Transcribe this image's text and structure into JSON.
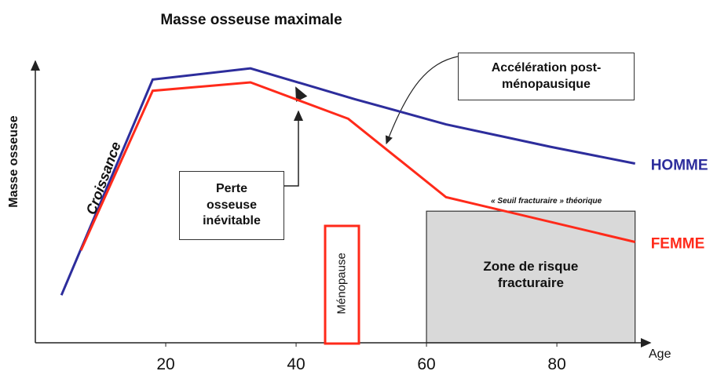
{
  "chart_data": {
    "type": "line",
    "title": "Masse osseuse maximale",
    "xlabel": "Age",
    "ylabel": "Masse osseuse",
    "xlim": [
      0,
      93
    ],
    "ylim": [
      0,
      100
    ],
    "xticks": [
      20,
      40,
      60,
      80
    ],
    "series": [
      {
        "name": "HOMME",
        "color": "#2d2d9c",
        "x": [
          4,
          18,
          33,
          49,
          63,
          79,
          92
        ],
        "values": [
          17,
          94,
          98,
          87,
          78,
          70,
          64
        ]
      },
      {
        "name": "FEMME",
        "color": "#ff2a1a",
        "x": [
          7,
          18,
          33,
          48,
          63,
          92
        ],
        "values": [
          33,
          90,
          93,
          80,
          52,
          36
        ]
      }
    ],
    "zone": {
      "label": "Zone de risque fracturaire",
      "x": [
        60,
        92
      ],
      "threshold": 47,
      "threshold_label": "« Seuil fracturaire » théorique"
    },
    "annotations": {
      "growth": "Croissance",
      "loss": "Perte osseuse inévitable",
      "acceleration": "Accélération post-ménopausique",
      "menopause": "Ménopause"
    }
  }
}
